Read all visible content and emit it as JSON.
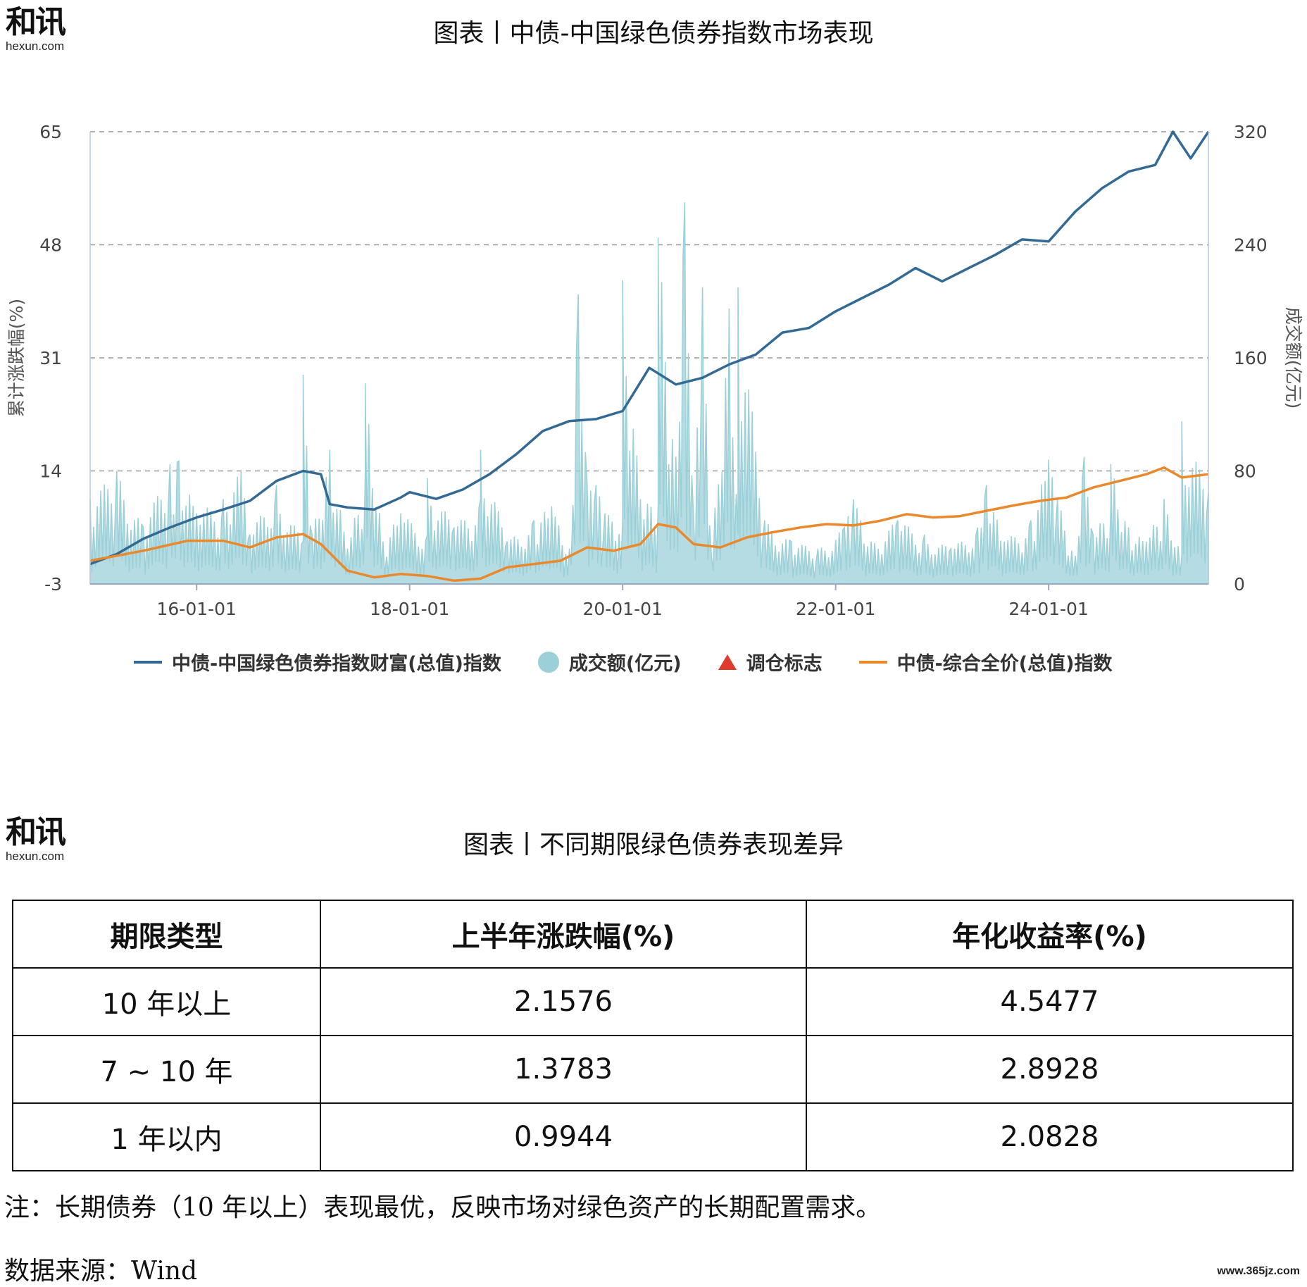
{
  "logo": {
    "mark": "和讯",
    "sub": "hexun.com"
  },
  "chart_title": "图表丨中债-中国绿色债券指数市场表现",
  "table_title": "图表丨不同期限绿色债券表现差异",
  "colors": {
    "wealth": "#336a95",
    "volume": "#9cd0d8",
    "adjust": "#e03a2e",
    "full_price": "#e9892c",
    "grid": "#999999"
  },
  "chart_data": {
    "type": "line",
    "ylabel": "累计涨跌幅(%)",
    "y2label": "成交额(亿元)",
    "ylim": [
      -3,
      65
    ],
    "y2lim": [
      0,
      320
    ],
    "yticks": [
      "65",
      "48",
      "31",
      "14",
      "-3"
    ],
    "y2ticks": [
      "320",
      "240",
      "160",
      "80",
      "0"
    ],
    "xlim": [
      "2015-01-01",
      "2025-07-01"
    ],
    "xticks": [
      "16-01-01",
      "18-01-01",
      "20-01-01",
      "22-01-01",
      "24-01-01"
    ],
    "legend": [
      "中债-中国绿色债券指数财富(总值)指数",
      "成交额(亿元)",
      "调仓标志",
      "中债-综合全价(总值)指数"
    ],
    "legend_position": "bottom",
    "series": [
      {
        "name": "中债-中国绿色债券指数财富(总值)指数",
        "axis": "left",
        "points": [
          [
            "2015-01",
            0.0
          ],
          [
            "2015-04",
            1.5
          ],
          [
            "2015-07",
            3.8
          ],
          [
            "2015-10",
            5.5
          ],
          [
            "2016-01",
            7.0
          ],
          [
            "2016-04",
            8.2
          ],
          [
            "2016-07",
            9.5
          ],
          [
            "2016-10",
            12.5
          ],
          [
            "2017-01",
            14.0
          ],
          [
            "2017-03",
            13.5
          ],
          [
            "2017-04",
            9.0
          ],
          [
            "2017-06",
            8.5
          ],
          [
            "2017-09",
            8.2
          ],
          [
            "2017-12",
            10.0
          ],
          [
            "2018-01",
            10.8
          ],
          [
            "2018-04",
            9.8
          ],
          [
            "2018-07",
            11.2
          ],
          [
            "2018-10",
            13.5
          ],
          [
            "2019-01",
            16.5
          ],
          [
            "2019-04",
            20.0
          ],
          [
            "2019-07",
            21.5
          ],
          [
            "2019-10",
            21.8
          ],
          [
            "2020-01",
            23.0
          ],
          [
            "2020-04",
            29.5
          ],
          [
            "2020-07",
            27.0
          ],
          [
            "2020-10",
            28.0
          ],
          [
            "2021-01",
            30.0
          ],
          [
            "2021-04",
            31.5
          ],
          [
            "2021-07",
            34.8
          ],
          [
            "2021-10",
            35.5
          ],
          [
            "2022-01",
            38.0
          ],
          [
            "2022-04",
            40.0
          ],
          [
            "2022-07",
            42.0
          ],
          [
            "2022-10",
            44.5
          ],
          [
            "2023-01",
            42.5
          ],
          [
            "2023-04",
            44.5
          ],
          [
            "2023-07",
            46.5
          ],
          [
            "2023-10",
            48.8
          ],
          [
            "2024-01",
            48.5
          ],
          [
            "2024-04",
            53.0
          ],
          [
            "2024-07",
            56.5
          ],
          [
            "2024-10",
            59.0
          ],
          [
            "2025-01",
            60.0
          ],
          [
            "2025-03",
            65.0
          ],
          [
            "2025-05",
            61.0
          ],
          [
            "2025-07",
            65.0
          ]
        ]
      },
      {
        "name": "中债-综合全价(总值)指数",
        "axis": "left",
        "points": [
          [
            "2015-01",
            0.5
          ],
          [
            "2015-07",
            2.0
          ],
          [
            "2015-12",
            3.5
          ],
          [
            "2016-04",
            3.5
          ],
          [
            "2016-07",
            2.5
          ],
          [
            "2016-10",
            4.0
          ],
          [
            "2017-01",
            4.5
          ],
          [
            "2017-03",
            3.0
          ],
          [
            "2017-06",
            -1.0
          ],
          [
            "2017-09",
            -2.0
          ],
          [
            "2017-12",
            -1.5
          ],
          [
            "2018-03",
            -1.8
          ],
          [
            "2018-06",
            -2.5
          ],
          [
            "2018-09",
            -2.2
          ],
          [
            "2018-12",
            -0.5
          ],
          [
            "2019-03",
            0.0
          ],
          [
            "2019-06",
            0.5
          ],
          [
            "2019-09",
            2.5
          ],
          [
            "2019-12",
            2.0
          ],
          [
            "2020-03",
            3.0
          ],
          [
            "2020-05",
            6.0
          ],
          [
            "2020-07",
            5.5
          ],
          [
            "2020-09",
            3.0
          ],
          [
            "2020-12",
            2.5
          ],
          [
            "2021-03",
            4.0
          ],
          [
            "2021-06",
            4.8
          ],
          [
            "2021-09",
            5.5
          ],
          [
            "2021-12",
            6.0
          ],
          [
            "2022-03",
            5.8
          ],
          [
            "2022-06",
            6.5
          ],
          [
            "2022-09",
            7.5
          ],
          [
            "2022-12",
            7.0
          ],
          [
            "2023-03",
            7.2
          ],
          [
            "2023-06",
            8.0
          ],
          [
            "2023-09",
            8.8
          ],
          [
            "2023-12",
            9.5
          ],
          [
            "2024-03",
            10.0
          ],
          [
            "2024-06",
            11.5
          ],
          [
            "2024-09",
            12.5
          ],
          [
            "2024-12",
            13.5
          ],
          [
            "2025-02",
            14.5
          ],
          [
            "2025-04",
            13.0
          ],
          [
            "2025-07",
            13.5
          ]
        ]
      }
    ],
    "volume": {
      "name": "成交额(亿元)",
      "axis": "right",
      "x": [
        "2015-01",
        "2015-04",
        "2015-07",
        "2015-10",
        "2016-01",
        "2016-04",
        "2016-07",
        "2016-10",
        "2017-01",
        "2017-02",
        "2017-04",
        "2017-06",
        "2017-08",
        "2017-10",
        "2017-12",
        "2018-03",
        "2018-06",
        "2018-09",
        "2018-12",
        "2019-03",
        "2019-05",
        "2019-07",
        "2019-09",
        "2019-11",
        "2020-01",
        "2020-03",
        "2020-05",
        "2020-07",
        "2020-09",
        "2020-11",
        "2021-02",
        "2021-05",
        "2021-08",
        "2021-11",
        "2022-02",
        "2022-05",
        "2022-08",
        "2022-11",
        "2023-02",
        "2023-05",
        "2023-08",
        "2023-11",
        "2024-02",
        "2024-04",
        "2024-06",
        "2024-08",
        "2024-10",
        "2024-12",
        "2025-02",
        "2025-04",
        "2025-07"
      ],
      "values": [
        60,
        80,
        40,
        85,
        50,
        60,
        35,
        70,
        30,
        35,
        95,
        25,
        80,
        30,
        50,
        35,
        40,
        60,
        30,
        45,
        55,
        25,
        70,
        50,
        45,
        60,
        55,
        90,
        45,
        20,
        35,
        45,
        30,
        25,
        40,
        30,
        45,
        35,
        25,
        40,
        30,
        45,
        60,
        20,
        35,
        55,
        40,
        30,
        60,
        20,
        65
      ],
      "peaks": [
        [
          "2015-11",
          87
        ],
        [
          "2016-06",
          80
        ],
        [
          "2016-10",
          66
        ],
        [
          "2017-01",
          148
        ],
        [
          "2017-08",
          142
        ],
        [
          "2018-03",
          75
        ],
        [
          "2018-09",
          95
        ],
        [
          "2019-08",
          205
        ],
        [
          "2019-10",
          70
        ],
        [
          "2020-01",
          215
        ],
        [
          "2020-05",
          245
        ],
        [
          "2020-08",
          270
        ],
        [
          "2020-10",
          210
        ],
        [
          "2021-01",
          195
        ],
        [
          "2021-02",
          210
        ],
        [
          "2022-03",
          60
        ],
        [
          "2023-06",
          70
        ],
        [
          "2024-01",
          88
        ],
        [
          "2024-05",
          90
        ],
        [
          "2024-08",
          85
        ],
        [
          "2025-04",
          115
        ]
      ]
    }
  },
  "table": {
    "headers": [
      "期限类型",
      "上半年涨跌幅(%)",
      "年化收益率(%)"
    ],
    "rows": [
      [
        "10 年以上",
        "2.1576",
        "4.5477"
      ],
      [
        "7 ~ 10 年",
        "1.3783",
        "2.8928"
      ],
      [
        "1 年以内",
        "0.9944",
        "2.0828"
      ]
    ]
  },
  "note": "注：长期债券（10 年以上）表现最优，反映市场对绿色资产的长期配置需求。",
  "source": "数据来源：Wind",
  "watermark": "www.365jz.com"
}
